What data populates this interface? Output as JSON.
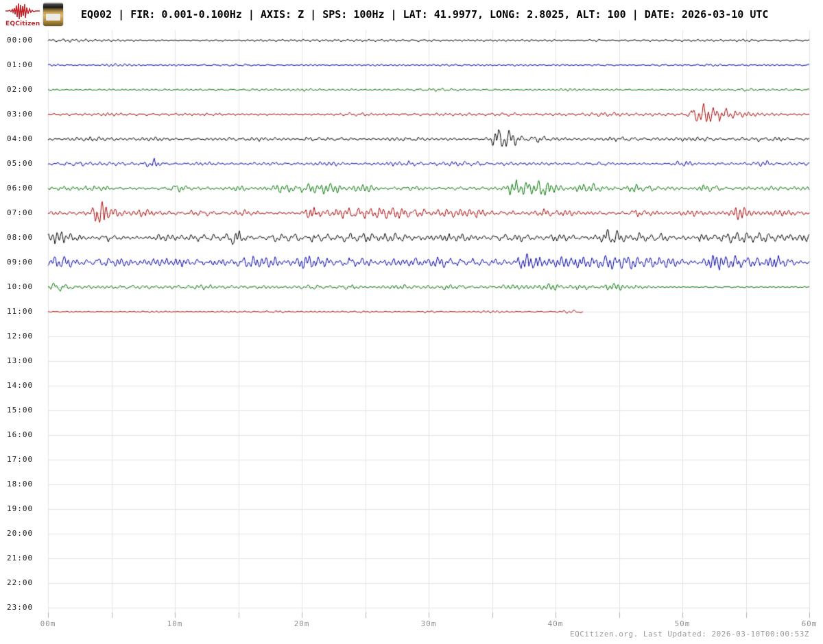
{
  "header": {
    "title": "EQ002 | FIR: 0.001-0.100Hz | AXIS: Z | SPS: 100Hz | LAT: 41.9977, LONG: 2.8025, ALT: 100 | DATE: 2026-03-10 UTC",
    "logo_text": "EQCitizen",
    "logo_color": "#c0272d"
  },
  "footer": {
    "text": "EQCitizen.org. Last Updated: 2026-03-10T00:00:53Z"
  },
  "chart_data": {
    "type": "line",
    "variant": "helicorder-24h-day-plot",
    "title": "EQ002 | FIR: 0.001-0.100Hz | AXIS: Z | SPS: 100Hz | LAT: 41.9977, LONG: 2.8025, ALT: 100 | DATE: 2026-03-10 UTC",
    "x_unit": "minutes-per-line",
    "x_range_min": [
      0,
      60
    ],
    "x_major_tick_labels": [
      "00m",
      "10m",
      "20m",
      "30m",
      "40m",
      "50m",
      "60m"
    ],
    "x_minor_tick_step_min": 5,
    "grid": true,
    "grid_color": "#e2e2e2",
    "tick_color": "#b0b0b0",
    "axis_label_color": "#8f8f8f",
    "hour_label_color": "#1a1a1a",
    "color_cycle": [
      "#000000",
      "#0000aa",
      "#007700",
      "#aa0000"
    ],
    "data_coverage": "00:00 through 11:42 UTC; rows 12:00-23:00 empty",
    "amplitude_unit": "relative trace pixels",
    "rows": [
      {
        "time": "00:00",
        "color": "#000000",
        "has_data": true,
        "start_min": 0,
        "end_min": 60,
        "base_amp": 1.6,
        "seed": 3,
        "events": [
          {
            "t": 1.5,
            "amp": 1.0,
            "dur": 3
          },
          {
            "t": 6,
            "amp": 0.8,
            "dur": 2
          },
          {
            "t": 13.5,
            "amp": 0.7,
            "dur": 1
          },
          {
            "t": 30,
            "amp": 0.5,
            "dur": 2
          },
          {
            "t": 43,
            "amp": 0.6,
            "dur": 1
          },
          {
            "t": 55,
            "amp": 0.5,
            "dur": 1
          }
        ]
      },
      {
        "time": "01:00",
        "color": "#0000aa",
        "has_data": true,
        "start_min": 0,
        "end_min": 60,
        "base_amp": 1.6,
        "seed": 7,
        "events": [
          {
            "t": 5.5,
            "amp": 1.0,
            "dur": 1.5
          },
          {
            "t": 15,
            "amp": 0.6,
            "dur": 2
          },
          {
            "t": 25,
            "amp": 0.8,
            "dur": 1
          },
          {
            "t": 37,
            "amp": 0.6,
            "dur": 1
          },
          {
            "t": 52,
            "amp": 0.7,
            "dur": 1
          }
        ]
      },
      {
        "time": "02:00",
        "color": "#007700",
        "has_data": true,
        "start_min": 0,
        "end_min": 60,
        "base_amp": 1.7,
        "seed": 11,
        "events": [
          {
            "t": 9,
            "amp": 0.7,
            "dur": 1
          },
          {
            "t": 21,
            "amp": 1.6,
            "dur": 1.5
          },
          {
            "t": 30,
            "amp": 0.8,
            "dur": 2
          },
          {
            "t": 41,
            "amp": 0.8,
            "dur": 1
          },
          {
            "t": 55,
            "amp": 1.0,
            "dur": 1
          }
        ]
      },
      {
        "time": "03:00",
        "color": "#aa0000",
        "has_data": true,
        "start_min": 0,
        "end_min": 60,
        "base_amp": 2.2,
        "seed": 13,
        "events": [
          {
            "t": 5,
            "amp": 1.0,
            "dur": 2
          },
          {
            "t": 13,
            "amp": 1.5,
            "dur": 1
          },
          {
            "t": 24,
            "amp": 1.0,
            "dur": 2
          },
          {
            "t": 36,
            "amp": 1.2,
            "dur": 2
          },
          {
            "t": 44,
            "amp": 1.0,
            "dur": 1.5
          },
          {
            "t": 51.4,
            "amp": 13,
            "dur": 0.9,
            "decay": 1.0
          },
          {
            "t": 53.6,
            "amp": 4,
            "dur": 0.8,
            "decay": 1.2
          }
        ]
      },
      {
        "time": "04:00",
        "color": "#000000",
        "has_data": true,
        "start_min": 0,
        "end_min": 60,
        "base_amp": 2.6,
        "seed": 17,
        "events": [
          {
            "t": 3,
            "amp": 1.2,
            "dur": 2
          },
          {
            "t": 9,
            "amp": 1.0,
            "dur": 2
          },
          {
            "t": 15.5,
            "amp": 1.5,
            "dur": 2
          },
          {
            "t": 22,
            "amp": 1.5,
            "dur": 3
          },
          {
            "t": 28,
            "amp": 1.2,
            "dur": 2
          },
          {
            "t": 35.9,
            "amp": 15,
            "dur": 1.0,
            "decay": 0.5
          },
          {
            "t": 38.6,
            "amp": 5,
            "dur": 0.4,
            "decay": 0.4
          },
          {
            "t": 45,
            "amp": 1.2,
            "dur": 2
          },
          {
            "t": 51,
            "amp": 1.0,
            "dur": 2
          },
          {
            "t": 57,
            "amp": 1.5,
            "dur": 2
          }
        ]
      },
      {
        "time": "05:00",
        "color": "#0000aa",
        "has_data": true,
        "start_min": 0,
        "end_min": 60,
        "base_amp": 2.6,
        "seed": 19,
        "events": [
          {
            "t": 2,
            "amp": 2,
            "dur": 1
          },
          {
            "t": 8.2,
            "amp": 8,
            "dur": 0.4,
            "decay": 0.3
          },
          {
            "t": 13,
            "amp": 1.5,
            "dur": 1
          },
          {
            "t": 22,
            "amp": 2,
            "dur": 1.5
          },
          {
            "t": 28,
            "amp": 1.2,
            "dur": 2
          },
          {
            "t": 33,
            "amp": 1.5,
            "dur": 2
          },
          {
            "t": 44,
            "amp": 1.5,
            "dur": 1
          },
          {
            "t": 50,
            "amp": 2,
            "dur": 1
          },
          {
            "t": 56,
            "amp": 2.5,
            "dur": 1.5
          }
        ]
      },
      {
        "time": "06:00",
        "color": "#007700",
        "has_data": true,
        "start_min": 0,
        "end_min": 60,
        "base_amp": 3.0,
        "seed": 23,
        "events": [
          {
            "t": 4,
            "amp": 2,
            "dur": 1
          },
          {
            "t": 10.4,
            "amp": 6,
            "dur": 0.6
          },
          {
            "t": 15,
            "amp": 3,
            "dur": 1
          },
          {
            "t": 18.5,
            "amp": 4,
            "dur": 1
          },
          {
            "t": 21.5,
            "amp": 6,
            "dur": 2.5
          },
          {
            "t": 25,
            "amp": 4.5,
            "dur": 1
          },
          {
            "t": 29,
            "amp": 2,
            "dur": 1
          },
          {
            "t": 38,
            "amp": 12,
            "dur": 2.6,
            "decay": 0.8
          },
          {
            "t": 42.6,
            "amp": 8,
            "dur": 0.9,
            "decay": 0.5
          },
          {
            "t": 46.8,
            "amp": 5,
            "dur": 1.2
          },
          {
            "t": 52,
            "amp": 3,
            "dur": 1
          },
          {
            "t": 57.5,
            "amp": 1.5,
            "dur": 1
          }
        ]
      },
      {
        "time": "07:00",
        "color": "#aa0000",
        "has_data": true,
        "start_min": 0,
        "end_min": 60,
        "base_amp": 3.2,
        "seed": 29,
        "events": [
          {
            "t": 4.2,
            "amp": 21,
            "dur": 0.5,
            "decay": 0.5
          },
          {
            "t": 7.5,
            "amp": 3,
            "dur": 1
          },
          {
            "t": 12,
            "amp": 2,
            "dur": 1
          },
          {
            "t": 16,
            "amp": 2.5,
            "dur": 1
          },
          {
            "t": 20.9,
            "amp": 12,
            "dur": 0.8,
            "decay": 0.6
          },
          {
            "t": 23.5,
            "amp": 5,
            "dur": 1
          },
          {
            "t": 27,
            "amp": 5,
            "dur": 5
          },
          {
            "t": 32.5,
            "amp": 4.5,
            "dur": 3
          },
          {
            "t": 40,
            "amp": 2.5,
            "dur": 2
          },
          {
            "t": 47,
            "amp": 5,
            "dur": 1.5
          },
          {
            "t": 50.5,
            "amp": 3,
            "dur": 1
          },
          {
            "t": 54.6,
            "amp": 9,
            "dur": 0.5,
            "decay": 0.4
          },
          {
            "t": 58,
            "amp": 3,
            "dur": 1
          }
        ]
      },
      {
        "time": "08:00",
        "color": "#000000",
        "has_data": true,
        "start_min": 0,
        "end_min": 60,
        "base_amp": 4.0,
        "seed": 31,
        "events": [
          {
            "t": 0.6,
            "amp": 6,
            "dur": 0.6
          },
          {
            "t": 1.7,
            "amp": 7,
            "dur": 0.9,
            "decay": 0.5
          },
          {
            "t": 5,
            "amp": 2,
            "dur": 1
          },
          {
            "t": 9,
            "amp": 2,
            "dur": 1
          },
          {
            "t": 12.3,
            "amp": 3,
            "dur": 1.5
          },
          {
            "t": 14.7,
            "amp": 10,
            "dur": 0.4,
            "decay": 0.3
          },
          {
            "t": 18.8,
            "amp": 5,
            "dur": 1.2
          },
          {
            "t": 21.5,
            "amp": 4,
            "dur": 1
          },
          {
            "t": 24.5,
            "amp": 5,
            "dur": 2
          },
          {
            "t": 28,
            "amp": 4,
            "dur": 3
          },
          {
            "t": 32,
            "amp": 3,
            "dur": 2
          },
          {
            "t": 36.5,
            "amp": 3.5,
            "dur": 2
          },
          {
            "t": 40,
            "amp": 2.5,
            "dur": 1
          },
          {
            "t": 44.3,
            "amp": 12,
            "dur": 0.6,
            "decay": 0.5
          },
          {
            "t": 47.5,
            "amp": 4,
            "dur": 1.5
          },
          {
            "t": 52.5,
            "amp": 4.5,
            "dur": 2
          },
          {
            "t": 56.5,
            "amp": 5,
            "dur": 4
          },
          {
            "t": 59.8,
            "amp": 6,
            "dur": 0.6
          }
        ]
      },
      {
        "time": "09:00",
        "color": "#0000aa",
        "has_data": true,
        "start_min": 0,
        "end_min": 60,
        "base_amp": 4.5,
        "seed": 37,
        "events": [
          {
            "t": 1,
            "amp": 4,
            "dur": 1
          },
          {
            "t": 5,
            "amp": 3,
            "dur": 2
          },
          {
            "t": 9.5,
            "amp": 3,
            "dur": 2
          },
          {
            "t": 13,
            "amp": 4,
            "dur": 1.5
          },
          {
            "t": 16.5,
            "amp": 5,
            "dur": 2.5
          },
          {
            "t": 21,
            "amp": 6,
            "dur": 2
          },
          {
            "t": 24.5,
            "amp": 6,
            "dur": 2
          },
          {
            "t": 28,
            "amp": 4,
            "dur": 2
          },
          {
            "t": 31.5,
            "amp": 4,
            "dur": 2
          },
          {
            "t": 34.5,
            "amp": 4,
            "dur": 2
          },
          {
            "t": 37.6,
            "amp": 18,
            "dur": 0.7,
            "decay": 0.8
          },
          {
            "t": 41,
            "amp": 6,
            "dur": 2
          },
          {
            "t": 44.5,
            "amp": 6,
            "dur": 3
          },
          {
            "t": 48,
            "amp": 5,
            "dur": 2
          },
          {
            "t": 52.6,
            "amp": 9,
            "dur": 0.8,
            "decay": 0.5
          },
          {
            "t": 56,
            "amp": 7,
            "dur": 4
          }
        ]
      },
      {
        "time": "10:00",
        "color": "#007700",
        "has_data": true,
        "start_min": 0,
        "end_min": 60,
        "base_amp": 2.8,
        "seed": 41,
        "calm_after": 47.5,
        "calm_amp": 1.1,
        "events": [
          {
            "t": 0.9,
            "amp": 6,
            "dur": 0.5,
            "decay": 0.4
          },
          {
            "t": 6,
            "amp": 1.5,
            "dur": 1
          },
          {
            "t": 12,
            "amp": 1,
            "dur": 1
          },
          {
            "t": 16,
            "amp": 1.2,
            "dur": 1
          },
          {
            "t": 20.5,
            "amp": 2.5,
            "dur": 1
          },
          {
            "t": 24,
            "amp": 2,
            "dur": 1
          },
          {
            "t": 28,
            "amp": 1.5,
            "dur": 1
          },
          {
            "t": 32,
            "amp": 1.5,
            "dur": 1
          },
          {
            "t": 37,
            "amp": 4,
            "dur": 2
          },
          {
            "t": 39.5,
            "amp": 4,
            "dur": 1
          },
          {
            "t": 42,
            "amp": 2,
            "dur": 1
          },
          {
            "t": 44.6,
            "amp": 4.5,
            "dur": 0.8
          },
          {
            "t": 47,
            "amp": 2,
            "dur": 1
          },
          {
            "t": 53,
            "amp": 0.5,
            "dur": 2
          }
        ]
      },
      {
        "time": "11:00",
        "color": "#aa0000",
        "has_data": true,
        "start_min": 0,
        "end_min": 42.2,
        "base_amp": 1.0,
        "seed": 43,
        "events": [
          {
            "t": 8,
            "amp": 0.5,
            "dur": 2
          },
          {
            "t": 18,
            "amp": 0.8,
            "dur": 1
          },
          {
            "t": 24,
            "amp": 1.2,
            "dur": 1
          },
          {
            "t": 30,
            "amp": 0.6,
            "dur": 1
          },
          {
            "t": 35,
            "amp": 1.0,
            "dur": 1
          },
          {
            "t": 41.3,
            "amp": 2.2,
            "dur": 0.7
          }
        ]
      },
      {
        "time": "12:00",
        "color": "#000000",
        "has_data": false,
        "events": []
      },
      {
        "time": "13:00",
        "color": "#0000aa",
        "has_data": false,
        "events": []
      },
      {
        "time": "14:00",
        "color": "#007700",
        "has_data": false,
        "events": []
      },
      {
        "time": "15:00",
        "color": "#aa0000",
        "has_data": false,
        "events": []
      },
      {
        "time": "16:00",
        "color": "#000000",
        "has_data": false,
        "events": []
      },
      {
        "time": "17:00",
        "color": "#0000aa",
        "has_data": false,
        "events": []
      },
      {
        "time": "18:00",
        "color": "#007700",
        "has_data": false,
        "events": []
      },
      {
        "time": "19:00",
        "color": "#aa0000",
        "has_data": false,
        "events": []
      },
      {
        "time": "20:00",
        "color": "#000000",
        "has_data": false,
        "events": []
      },
      {
        "time": "21:00",
        "color": "#0000aa",
        "has_data": false,
        "events": []
      },
      {
        "time": "22:00",
        "color": "#007700",
        "has_data": false,
        "events": []
      },
      {
        "time": "23:00",
        "color": "#aa0000",
        "has_data": false,
        "events": []
      }
    ]
  }
}
